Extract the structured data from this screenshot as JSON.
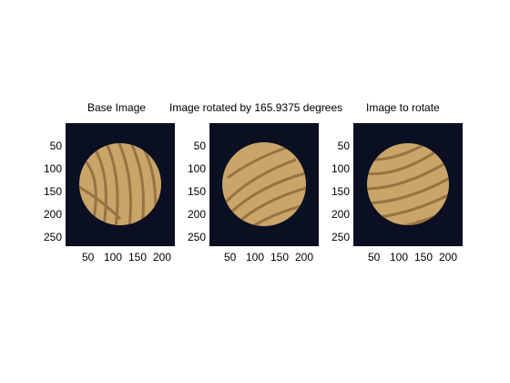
{
  "figure": {
    "background": "#ffffff",
    "image_background": "#0b0f22",
    "wood_light": "#c9a56a",
    "wood_dark": "#8a6738"
  },
  "subplots": [
    {
      "title": "Base Image",
      "yticks": [
        "50",
        "100",
        "150",
        "200",
        "250"
      ],
      "xticks": [
        "50",
        "100",
        "150",
        "200"
      ]
    },
    {
      "title": "Image rotated by 165.9375 degrees",
      "yticks": [
        "50",
        "100",
        "150",
        "200",
        "250"
      ],
      "xticks": [
        "50",
        "100",
        "150",
        "200"
      ]
    },
    {
      "title": "Image to rotate",
      "yticks": [
        "50",
        "100",
        "150",
        "200",
        "250"
      ],
      "xticks": [
        "50",
        "100",
        "150",
        "200"
      ]
    }
  ]
}
